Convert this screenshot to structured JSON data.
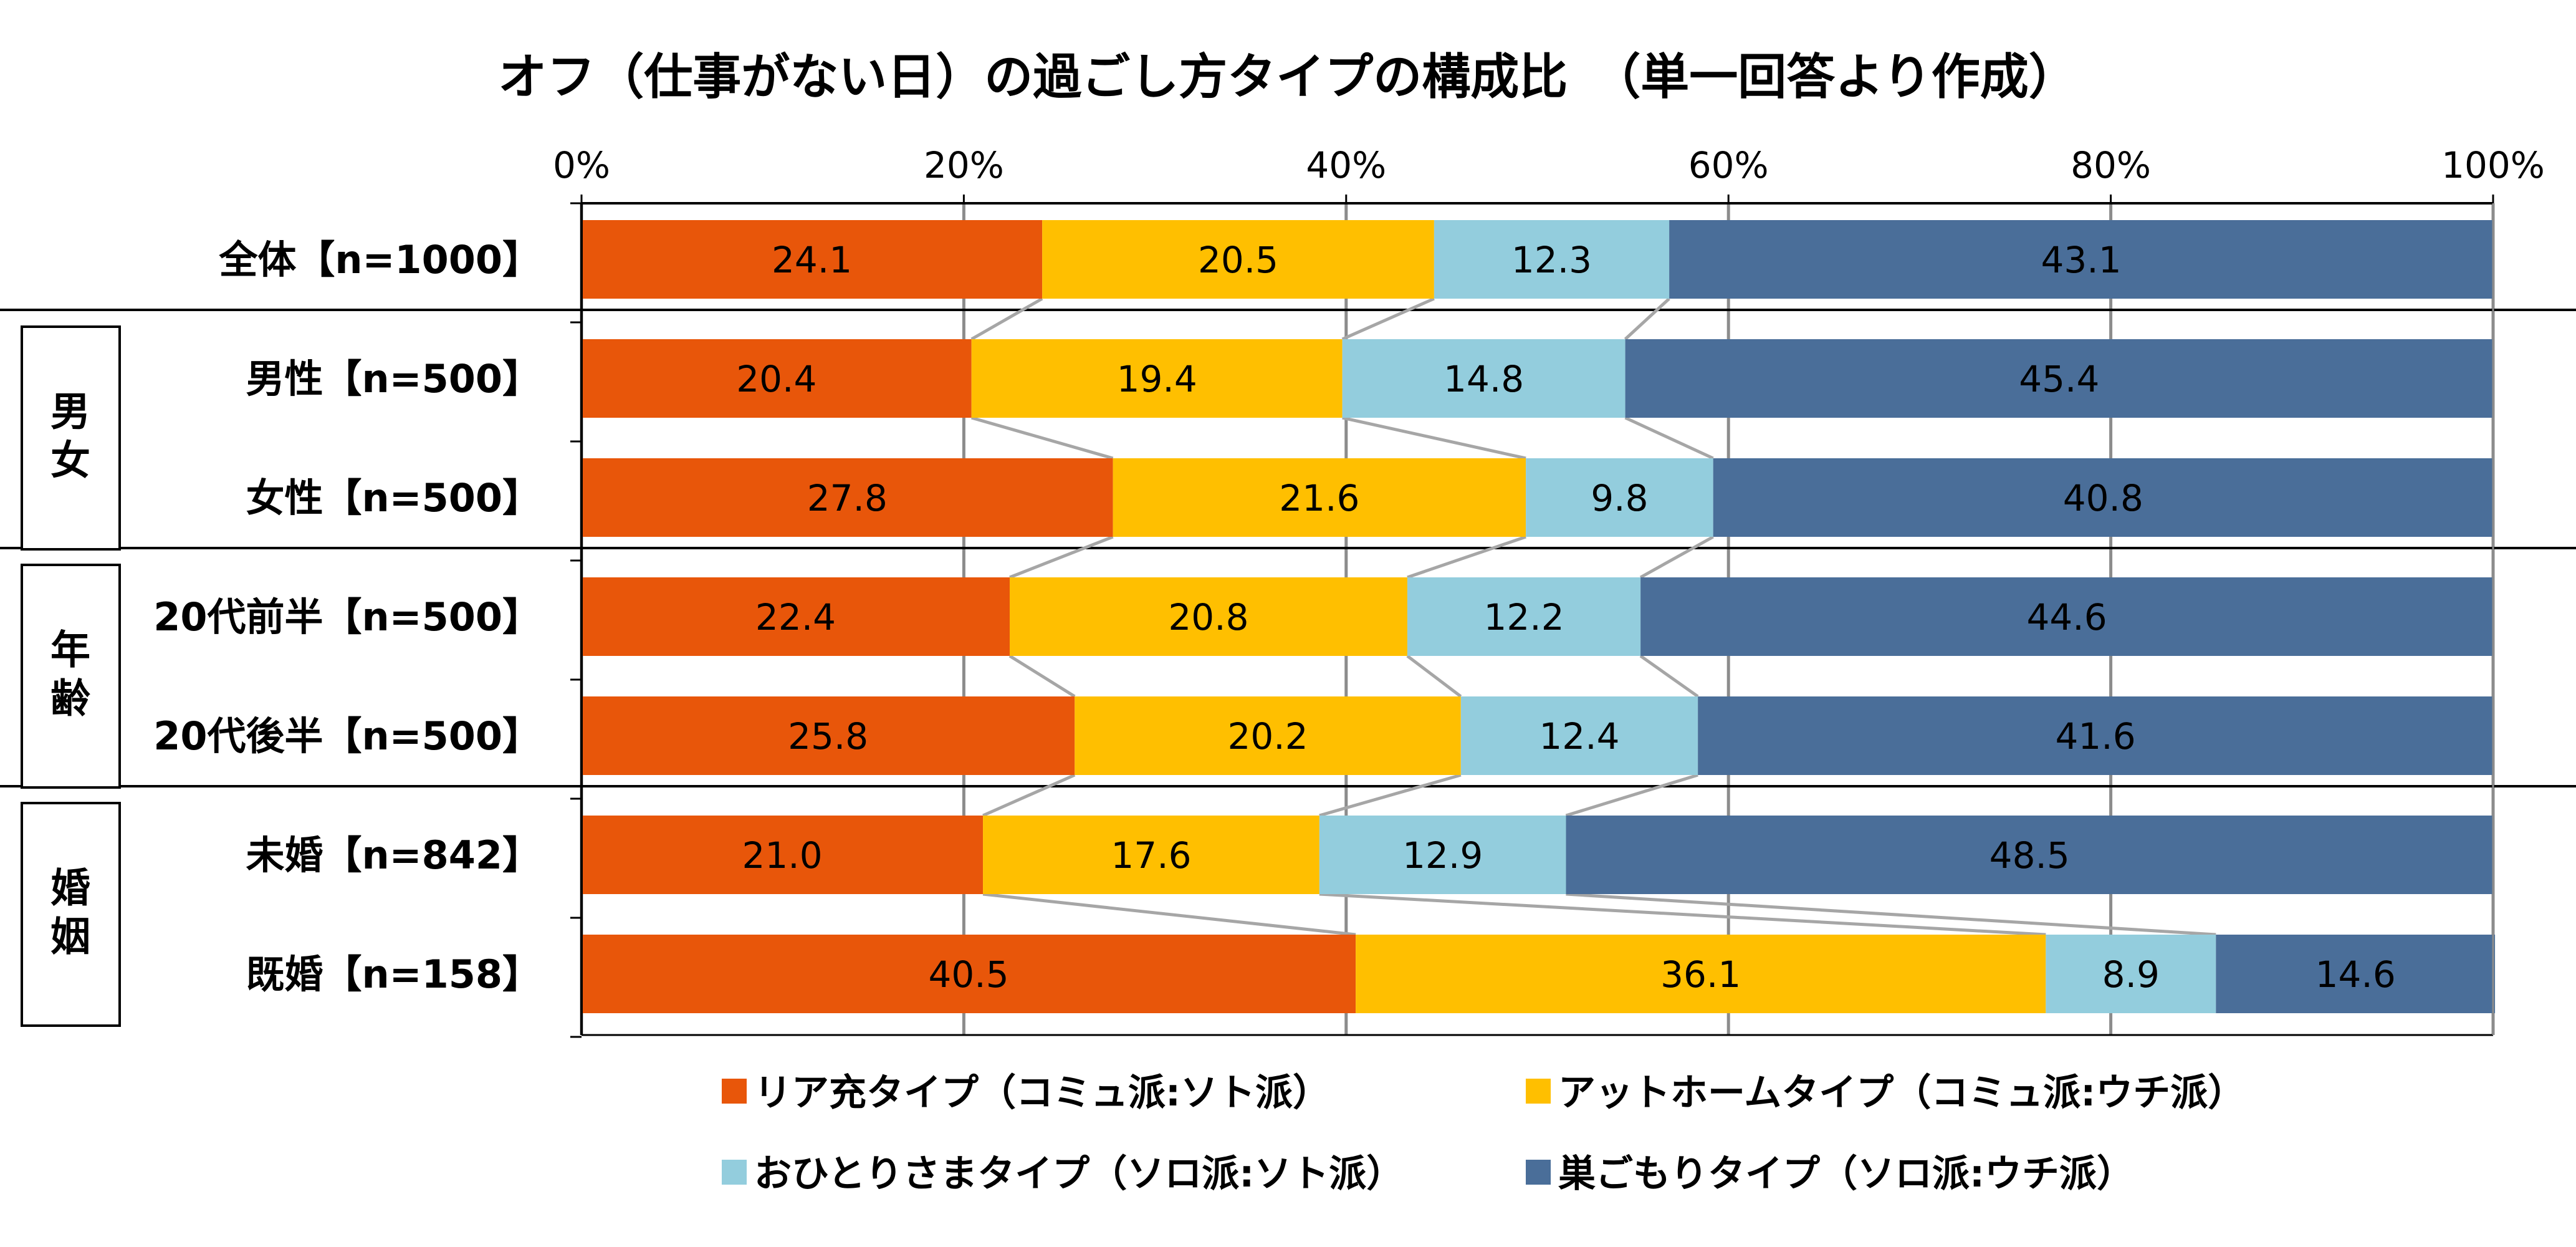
{
  "chart_data": {
    "type": "bar",
    "orientation": "horizontal",
    "stacked": "100%",
    "title": "オフ（仕事がない日）の過ごし方タイプの構成比　（単一回答より作成）",
    "xlim": [
      0,
      100
    ],
    "x_ticks": [
      "0%",
      "20%",
      "40%",
      "60%",
      "80%",
      "100%"
    ],
    "grid": true,
    "series_lines": true,
    "legend_position": "bottom",
    "categories": [
      "全体【n=1000】",
      "男性【n=500】",
      "女性【n=500】",
      "20代前半【n=500】",
      "20代後半【n=500】",
      "未婚【n=842】",
      "既婚【n=158】"
    ],
    "groups": [
      {
        "label": "男女",
        "rows": [
          1,
          2
        ]
      },
      {
        "label": "年齢",
        "rows": [
          3,
          4
        ]
      },
      {
        "label": "婚姻",
        "rows": [
          5,
          6
        ]
      }
    ],
    "series": [
      {
        "name": "リア充タイプ（コミュ派:ソト派）",
        "color": "#E8560A",
        "values": [
          24.1,
          20.4,
          27.8,
          22.4,
          25.8,
          21.0,
          40.5
        ]
      },
      {
        "name": "アットホームタイプ（コミュ派:ウチ派）",
        "color": "#FFBF00",
        "values": [
          20.5,
          19.4,
          21.6,
          20.8,
          20.2,
          17.6,
          36.1
        ]
      },
      {
        "name": "おひとりさまタイプ（ソロ派:ソト派）",
        "color": "#93CDDD",
        "values": [
          12.3,
          14.8,
          9.8,
          12.2,
          12.4,
          12.9,
          8.9
        ]
      },
      {
        "name": "巣ごもりタイプ（ソロ派:ウチ派）",
        "color": "#4A6E99",
        "values": [
          43.1,
          45.4,
          40.8,
          44.6,
          41.6,
          48.5,
          14.6
        ]
      }
    ],
    "value_labels": [
      [
        "24.1",
        "20.5",
        "12.3",
        "43.1"
      ],
      [
        "20.4",
        "19.4",
        "14.8",
        "45.4"
      ],
      [
        "27.8",
        "21.6",
        "9.8",
        "40.8"
      ],
      [
        "22.4",
        "20.8",
        "12.2",
        "44.6"
      ],
      [
        "25.8",
        "20.2",
        "12.4",
        "41.6"
      ],
      [
        "21.0",
        "17.6",
        "12.9",
        "48.5"
      ],
      [
        "40.5",
        "36.1",
        "8.9",
        "14.6"
      ]
    ]
  }
}
